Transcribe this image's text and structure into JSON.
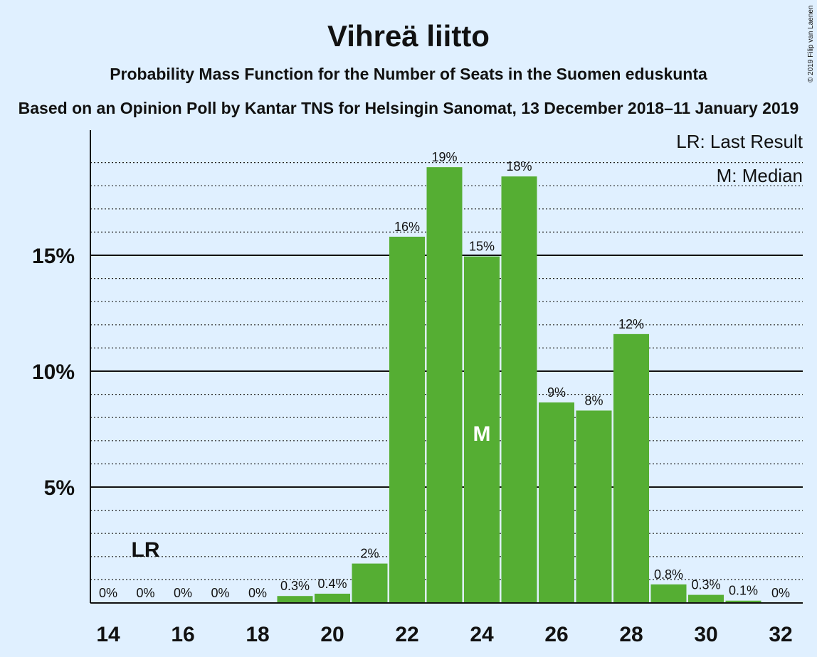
{
  "copyright": "© 2019 Filip van Laenen",
  "chart_data": {
    "type": "bar",
    "title": "Vihreä liitto",
    "subtitle": "Probability Mass Function for the Number of Seats in the Suomen eduskunta",
    "subtitle2": "Based on an Opinion Poll by Kantar TNS for Helsingin Sanomat, 13 December 2018–11 January 2019",
    "x": [
      14,
      15,
      16,
      17,
      18,
      19,
      20,
      21,
      22,
      23,
      24,
      25,
      26,
      27,
      28,
      29,
      30,
      31,
      32
    ],
    "values": [
      0,
      0,
      0,
      0,
      0,
      0.3,
      0.4,
      1.7,
      15.8,
      18.8,
      14.95,
      18.4,
      8.65,
      8.3,
      11.6,
      0.8,
      0.35,
      0.1,
      0
    ],
    "labels": [
      "0%",
      "0%",
      "0%",
      "0%",
      "0%",
      "0.3%",
      "0.4%",
      "2%",
      "16%",
      "19%",
      "15%",
      "18%",
      "9%",
      "8%",
      "12%",
      "0.8%",
      "0.3%",
      "0.1%",
      "0%"
    ],
    "x_ticks": [
      "14",
      "16",
      "18",
      "20",
      "22",
      "24",
      "26",
      "28",
      "30",
      "32"
    ],
    "y_ticks": [
      "5%",
      "10%",
      "15%"
    ],
    "ylim": [
      0,
      20
    ],
    "last_result_seat": 15,
    "median_seat": 24,
    "last_result_marker": "LR",
    "median_marker": "M",
    "legend": [
      "LR: Last Result",
      "M: Median"
    ],
    "bar_color": "#55ae33",
    "grid": true,
    "legend_position": "top-right"
  }
}
